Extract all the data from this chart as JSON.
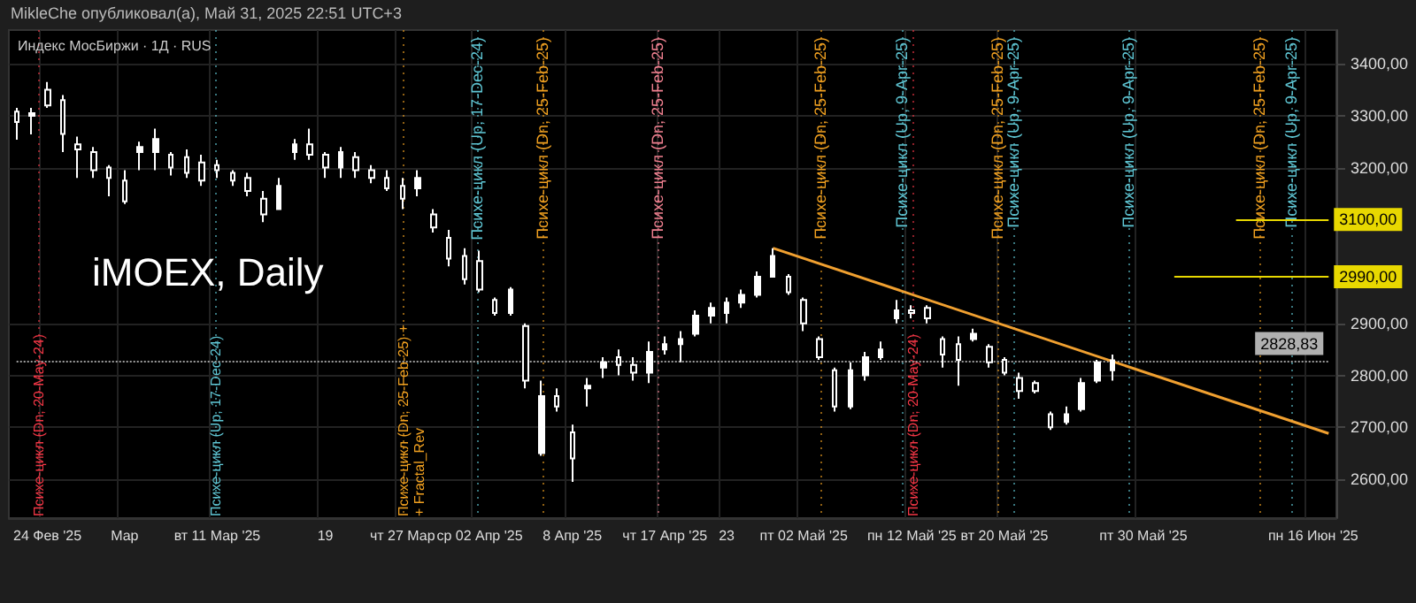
{
  "chart_data": {
    "type": "candlestick",
    "title": "iMOEX, Daily",
    "subtitle": "Индекс МосБиржи · 1Д · RUS",
    "annotations": [
      "MikleChe опубликовал(а), Май 31, 2025 22:51 UTC+3",
      "Психе-цикл (Dn, 20-May-24)",
      "Психе-цикл (Up, 17-Dec-24)",
      "Психе-цикл (Dn, 25-Feb-25) +",
      "+ Fractal_Rev",
      "Психе-цикл (Up, 17-Dec-24)",
      "Психе-цикл (Dn, 25-Feb-25)",
      "Психе-цикл (Dn, 25-Feb-25)",
      "Психе-цикл (Dn, 25-Feb-25)",
      "Психе-цикл (Up, 9-Apr-25)",
      "Психе-цикл (Dn, 20-May-24)",
      "Психе-цикл (Dn, 25-Feb-25)",
      "Психе-цикл (Up, 9-Apr-25)",
      "Психе-цикл (Up, 9-Apr-25)",
      "Психе-цикл (Dn, 25-Feb-25)",
      "Психе-цикл (Up, 9-Apr-25)"
    ],
    "categories": [
      null,
      null,
      "24 Фев '25",
      null,
      null,
      null,
      null,
      "Мар",
      null,
      null,
      null,
      null,
      null,
      "вт 11 Мар '25",
      null,
      null,
      null,
      null,
      null,
      null,
      "19",
      null,
      null,
      null,
      null,
      "чт 27 Мар",
      null,
      null,
      null,
      null,
      "ср 02 Апр '25",
      null,
      null,
      null,
      null,
      null,
      "8 Апр '25",
      null,
      null,
      null,
      null,
      null,
      "чт 17 Апр '25",
      null,
      null,
      null,
      "23",
      null,
      null,
      null,
      null,
      "пт 02 Май '25",
      null,
      null,
      null,
      null,
      null,
      null,
      "пн 12 Май '25",
      null,
      null,
      null,
      null,
      null,
      "вт 20 Май '25",
      null,
      null,
      null,
      null,
      null,
      null,
      null,
      null,
      "пт 30 Май '25",
      null,
      null,
      null,
      null,
      null,
      null,
      null,
      null,
      null,
      null,
      "пн 16 Июн '25",
      null
    ],
    "ohlc": [
      [
        3308,
        3315,
        3254,
        3288
      ],
      [
        3300,
        3315,
        3264,
        3305
      ],
      [
        3350,
        3365,
        3315,
        3320
      ],
      [
        3330,
        3340,
        3230,
        3265
      ],
      [
        3245,
        3260,
        3180,
        3235
      ],
      [
        3230,
        3240,
        3180,
        3195
      ],
      [
        3200,
        3205,
        3145,
        3180
      ],
      [
        3175,
        3195,
        3130,
        3135
      ],
      [
        3230,
        3250,
        3195,
        3240
      ],
      [
        3230,
        3275,
        3195,
        3255
      ],
      [
        3225,
        3230,
        3185,
        3200
      ],
      [
        3220,
        3235,
        3180,
        3190
      ],
      [
        3210,
        3225,
        3165,
        3175
      ],
      [
        3205,
        3215,
        3180,
        3195
      ],
      [
        3190,
        3195,
        3165,
        3175
      ],
      [
        3180,
        3190,
        3145,
        3155
      ],
      [
        3140,
        3155,
        3095,
        3110
      ],
      [
        3120,
        3180,
        3120,
        3165
      ],
      [
        3230,
        3255,
        3215,
        3245
      ],
      [
        3245,
        3275,
        3215,
        3225
      ],
      [
        3225,
        3230,
        3180,
        3200
      ],
      [
        3200,
        3240,
        3180,
        3230
      ],
      [
        3220,
        3230,
        3180,
        3195
      ],
      [
        3195,
        3205,
        3170,
        3180
      ],
      [
        3180,
        3195,
        3155,
        3160
      ],
      [
        3165,
        3180,
        3120,
        3140
      ],
      [
        3160,
        3195,
        3145,
        3180
      ],
      [
        3110,
        3120,
        3075,
        3085
      ],
      [
        3065,
        3080,
        3010,
        3025
      ],
      [
        3030,
        3045,
        2975,
        2985
      ],
      [
        3020,
        3040,
        2960,
        2965
      ],
      [
        2945,
        2950,
        2915,
        2920
      ],
      [
        2920,
        2970,
        2915,
        2965
      ],
      [
        2895,
        2900,
        2775,
        2790
      ],
      [
        2650,
        2790,
        2645,
        2760
      ],
      [
        2760,
        2775,
        2730,
        2740
      ],
      [
        2690,
        2705,
        2595,
        2640
      ],
      [
        2775,
        2795,
        2740,
        2780
      ],
      [
        2815,
        2835,
        2795,
        2825
      ],
      [
        2835,
        2850,
        2800,
        2820
      ],
      [
        2820,
        2835,
        2790,
        2805
      ],
      [
        2805,
        2865,
        2785,
        2845
      ],
      [
        2850,
        2875,
        2840,
        2860
      ],
      [
        2860,
        2885,
        2825,
        2870
      ],
      [
        2880,
        2925,
        2875,
        2915
      ],
      [
        2915,
        2940,
        2900,
        2930
      ],
      [
        2920,
        2950,
        2900,
        2940
      ],
      [
        2940,
        2965,
        2930,
        2955
      ],
      [
        2955,
        3000,
        2950,
        2990
      ],
      [
        2990,
        3045,
        2990,
        3030
      ],
      [
        2990,
        2995,
        2955,
        2960
      ],
      [
        2945,
        2950,
        2885,
        2900
      ],
      [
        2870,
        2875,
        2830,
        2835
      ],
      [
        2810,
        2815,
        2730,
        2740
      ],
      [
        2740,
        2825,
        2735,
        2810
      ],
      [
        2800,
        2845,
        2790,
        2835
      ],
      [
        2835,
        2865,
        2830,
        2850
      ],
      [
        2910,
        2945,
        2900,
        2925
      ],
      [
        2925,
        2935,
        2910,
        2920
      ],
      [
        2930,
        2935,
        2900,
        2910
      ],
      [
        2870,
        2875,
        2815,
        2840
      ],
      [
        2860,
        2875,
        2780,
        2830
      ],
      [
        2870,
        2890,
        2865,
        2880
      ],
      [
        2855,
        2860,
        2815,
        2825
      ],
      [
        2830,
        2835,
        2800,
        2805
      ],
      [
        2795,
        2805,
        2755,
        2770
      ],
      [
        2785,
        2790,
        2765,
        2770
      ],
      [
        2725,
        2730,
        2695,
        2700
      ],
      [
        2710,
        2740,
        2705,
        2725
      ],
      [
        2735,
        2795,
        2730,
        2785
      ],
      [
        2790,
        2830,
        2785,
        2825
      ],
      [
        2810,
        2840,
        2790,
        2829
      ],
      null,
      null,
      null,
      null,
      null,
      null,
      null,
      null,
      null,
      null,
      null,
      null,
      null,
      null
    ],
    "color": "#ffffff",
    "series": [
      {
        "type": "line",
        "color": "#f0a030",
        "values": [
          null,
          null,
          null,
          null,
          null,
          null,
          null,
          null,
          null,
          null,
          null,
          null,
          null,
          null,
          null,
          null,
          null,
          null,
          null,
          null,
          null,
          null,
          null,
          null,
          null,
          null,
          null,
          null,
          null,
          null,
          null,
          null,
          null,
          null,
          null,
          null,
          null,
          null,
          null,
          null,
          null,
          null,
          null,
          null,
          null,
          null,
          null,
          null,
          null,
          3045,
          null,
          null,
          null,
          null,
          null,
          null,
          null,
          null,
          null,
          null,
          null,
          null,
          null,
          null,
          null,
          null,
          null,
          null,
          null,
          null,
          null,
          null,
          null,
          null,
          null,
          null,
          null,
          null,
          null,
          null,
          null,
          null,
          null,
          null,
          null,
          2688
        ]
      }
    ],
    "ylim": [
      2525,
      3465
    ],
    "yticks": [
      {
        "value": 2600,
        "label": "2600,00"
      },
      {
        "value": 2700,
        "label": "2700,00"
      },
      {
        "value": 2800,
        "label": "2800,00"
      },
      {
        "value": 2900,
        "label": "2900,00"
      },
      {
        "value": 3200,
        "label": "3200,00"
      },
      {
        "value": 3300,
        "label": "3300,00"
      },
      {
        "value": 3400,
        "label": "3400,00"
      }
    ],
    "ref_lines": [
      {
        "axis": "y",
        "value": 3100,
        "label": "3100,00",
        "color": "#e8d800"
      },
      {
        "axis": "y",
        "value": 2990,
        "label": "2990,00",
        "color": "#e8d800"
      },
      {
        "axis": "y",
        "value": 2828.83,
        "label": "2828,83",
        "color": "#9e9e9e",
        "line_style": "dotted"
      }
    ],
    "grid": true
  }
}
